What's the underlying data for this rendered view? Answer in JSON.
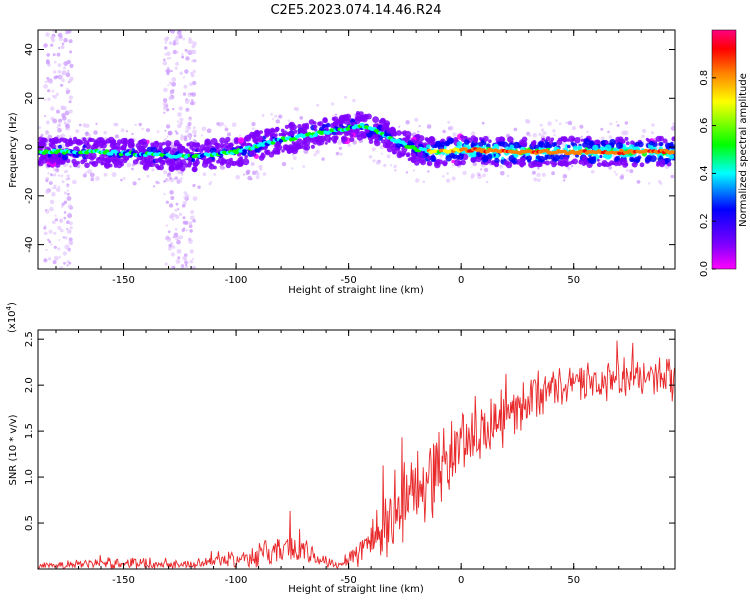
{
  "title": "C2E5.2023.074.14.46.R24",
  "chart_data": [
    {
      "type": "heatmap",
      "name": "spectrogram",
      "xlabel": "Height of straight line (km)",
      "ylabel": "Frequency (Hz)",
      "xlim": [
        -188,
        95
      ],
      "ylim": [
        -50,
        48
      ],
      "xticks": [
        -150,
        -100,
        -50,
        0,
        50
      ],
      "xtick_labels": [
        "-150",
        "-100",
        "-50",
        "0",
        "50"
      ],
      "yticks": [
        -40,
        -20,
        0,
        20,
        40
      ],
      "ytick_labels": [
        "-40",
        "-20",
        "0",
        "20",
        "40"
      ],
      "ridge": {
        "description": "dominant frequency track vs height",
        "x": [
          -188,
          -160,
          -140,
          -120,
          -100,
          -80,
          -60,
          -45,
          -38,
          -30,
          -20,
          -10,
          0,
          20,
          50,
          95
        ],
        "y": [
          -2,
          -2,
          -3,
          -4,
          -2,
          3,
          6,
          9,
          7,
          3,
          -1,
          -2,
          -1,
          -2,
          -2,
          -2
        ]
      },
      "colorbar": {
        "label": "Normalized spectral amplitude",
        "range": [
          0,
          1
        ],
        "ticks": [
          0.0,
          0.2,
          0.4,
          0.6,
          0.8
        ],
        "tick_labels": [
          "0.0",
          "0.2",
          "0.4",
          "0.6",
          "0.8"
        ],
        "colormap": [
          "#ff00ff",
          "#8000ff",
          "#0000ff",
          "#00ffff",
          "#00ff00",
          "#ffff00",
          "#ff8000",
          "#ff0000",
          "#ff0080"
        ]
      }
    },
    {
      "type": "line",
      "name": "snr",
      "xlabel": "Height of straight line (km)",
      "ylabel": "SNR (10 * v/v)",
      "scale_label": "(x10",
      "scale_exponent": "4",
      "scale_close": ")",
      "xlim": [
        -188,
        95
      ],
      "ylim": [
        0,
        2.6
      ],
      "xticks": [
        -150,
        -100,
        -50,
        0,
        50
      ],
      "xtick_labels": [
        "-150",
        "-100",
        "-50",
        "0",
        "50"
      ],
      "yticks": [
        0.5,
        1.0,
        1.5,
        2.0,
        2.5
      ],
      "ytick_labels": [
        "0.5",
        "1.0",
        "1.5",
        "2.0",
        "2.5"
      ],
      "color": "#e8282a",
      "envelope": {
        "description": "approximate mean level and fluctuation of the noisy SNR trace",
        "x": [
          -188,
          -170,
          -150,
          -120,
          -110,
          -90,
          -75,
          -65,
          -55,
          -45,
          -35,
          -25,
          -15,
          -5,
          0,
          10,
          20,
          30,
          40,
          50,
          70,
          95
        ],
        "mean": [
          0.03,
          0.05,
          0.07,
          0.05,
          0.08,
          0.15,
          0.25,
          0.12,
          0.05,
          0.2,
          0.45,
          0.75,
          1.0,
          1.2,
          1.4,
          1.5,
          1.65,
          1.85,
          1.95,
          2.0,
          2.05,
          2.05
        ],
        "spread": [
          0.03,
          0.06,
          0.08,
          0.05,
          0.08,
          0.15,
          0.25,
          0.12,
          0.05,
          0.2,
          0.5,
          0.55,
          0.55,
          0.5,
          0.45,
          0.4,
          0.35,
          0.3,
          0.25,
          0.25,
          0.25,
          0.3
        ]
      }
    }
  ]
}
